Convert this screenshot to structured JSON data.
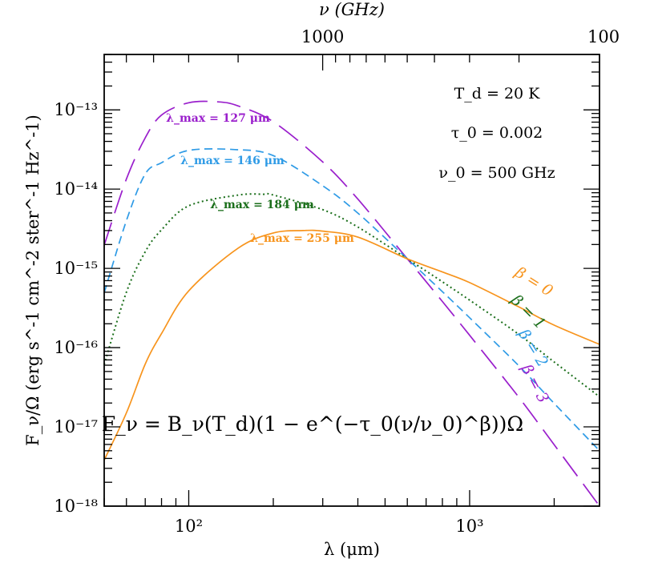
{
  "chart_data": {
    "type": "line",
    "xscale": "log",
    "yscale": "log",
    "xlim": [
      50,
      2900
    ],
    "ylim": [
      1e-18,
      5e-13
    ],
    "grid": false,
    "xlabel": "λ (μm)",
    "ylabel": "F_ν/Ω  (erg s^-1 cm^-2 ster^-1 Hz^-1)",
    "top_axis": {
      "label": "ν (GHz)",
      "ticks": [
        {
          "value": 1000,
          "label": "1000"
        },
        {
          "value": 100,
          "label": "100"
        }
      ]
    },
    "x_ticks": [
      {
        "value": 100,
        "label": "10²"
      },
      {
        "value": 1000,
        "label": "10³"
      }
    ],
    "y_ticks": [
      {
        "value": 1e-18,
        "label": "10⁻¹⁸"
      },
      {
        "value": 1e-17,
        "label": "10⁻¹⁷"
      },
      {
        "value": 1e-16,
        "label": "10⁻¹⁶"
      },
      {
        "value": 1e-15,
        "label": "10⁻¹⁵"
      },
      {
        "value": 1e-14,
        "label": "10⁻¹⁴"
      },
      {
        "value": 1e-13,
        "label": "10⁻¹³"
      }
    ],
    "params": {
      "Td": "T_d = 20 K",
      "tau0": "τ_0 = 0.002",
      "nu0": "ν_0 = 500 GHz"
    },
    "formula": "F_ν = B_ν(T_d)(1 − e^(−τ_0(ν/ν_0)^β))Ω",
    "series": [
      {
        "beta_label": "β = 3",
        "peak_label": "λ_max = 127 μm",
        "color": "#9a1fcc",
        "dash": "long",
        "x": [
          50,
          60,
          70,
          80,
          100,
          127,
          150,
          200,
          300,
          400,
          600,
          800,
          1000,
          1500,
          2000,
          2900
        ],
        "y": [
          1.96e-15,
          1.34e-14,
          4.44e-14,
          8.6e-14,
          1.23e-13,
          1.26e-13,
          1.12e-13,
          7.08e-14,
          2.2e-14,
          7.48e-15,
          1.32e-15,
          3.82e-16,
          1.43e-16,
          2.34e-17,
          5.95e-18,
          1e-18
        ]
      },
      {
        "beta_label": "β = 2",
        "peak_label": "λ_max = 146 μm",
        "color": "#2f9be6",
        "dash": "short",
        "x": [
          50,
          60,
          70,
          80,
          100,
          146,
          200,
          300,
          400,
          600,
          800,
          1000,
          1500,
          2000,
          2900
        ],
        "y": [
          4.9e-16,
          4e-15,
          1.55e-14,
          2.15e-14,
          3.08e-14,
          3.15e-14,
          2.65e-14,
          1.1e-14,
          4.98e-15,
          1.32e-15,
          5.08e-16,
          2.38e-16,
          5.85e-17,
          1.98e-17,
          5e-18
        ]
      },
      {
        "beta_label": "β = 1",
        "peak_label": "λ_max = 184 μm",
        "color": "#1a6e1a",
        "dash": "dotted",
        "x": [
          50,
          60,
          70,
          80,
          100,
          150,
          184,
          200,
          300,
          400,
          600,
          800,
          1000,
          1500,
          2000,
          2900
        ],
        "y": [
          6.1e-17,
          5e-16,
          1.62e-15,
          3.06e-15,
          6.16e-15,
          8.4e-15,
          8.6e-15,
          8.42e-15,
          5.5e-15,
          3.32e-15,
          1.32e-15,
          6.76e-16,
          3.97e-16,
          1.46e-16,
          6.59e-17,
          2.4e-17
        ]
      },
      {
        "beta_label": "β = 0",
        "peak_label": "λ_max = 255 μm",
        "color": "#f7941d",
        "dash": "solid",
        "x": [
          50,
          60,
          70,
          80,
          100,
          150,
          200,
          255,
          300,
          400,
          600,
          800,
          1000,
          1500,
          2000,
          2900
        ],
        "y": [
          3.8e-18,
          1.5e-17,
          6.2e-17,
          1.5e-16,
          5.2e-16,
          1.8e-15,
          2.8e-15,
          3e-15,
          2.95e-15,
          2.48e-15,
          1.32e-15,
          9e-16,
          6.61e-16,
          3.25e-16,
          1.92e-16,
          1.1e-16
        ]
      }
    ]
  }
}
